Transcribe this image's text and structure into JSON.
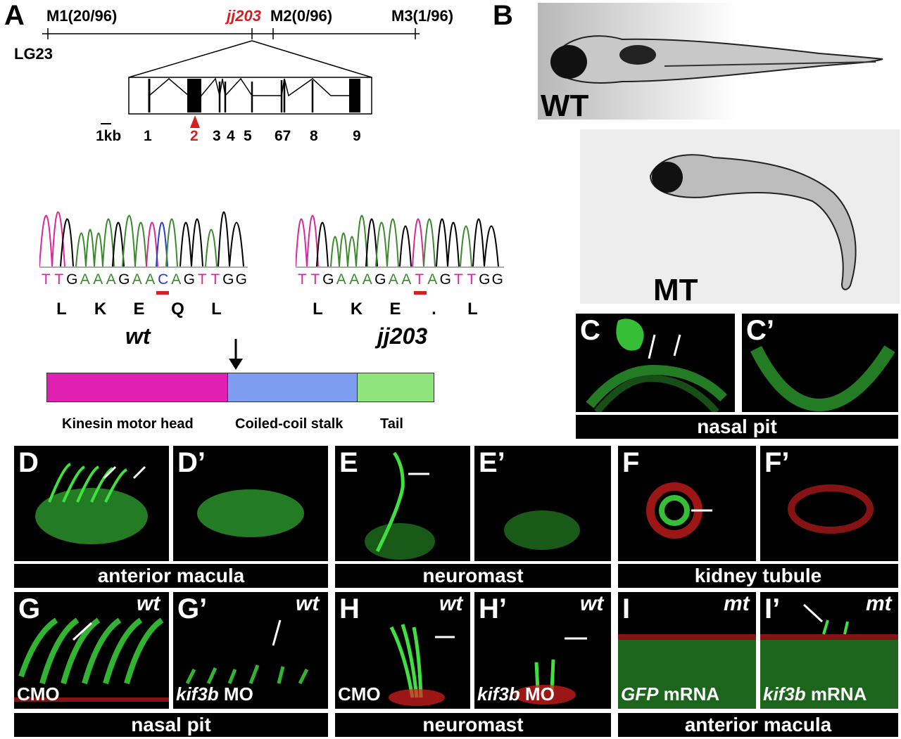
{
  "panel_a": {
    "label": "A",
    "markers": [
      {
        "name": "M1(20/96)",
        "color": "#000000"
      },
      {
        "name": "jj203",
        "color": "#d42020"
      },
      {
        "name": "M2(0/96)",
        "color": "#000000"
      },
      {
        "name": "M3(1/96)",
        "color": "#000000"
      }
    ],
    "linkage_group": "LG23",
    "scale": "1kb",
    "exons": [
      "1",
      "2",
      "3",
      "4",
      "5",
      "67",
      "8",
      "9"
    ],
    "mutated_exon": "2",
    "wt_sequence": [
      "T",
      "T",
      "G",
      "A",
      "A",
      "A",
      "G",
      "A",
      "A",
      "C",
      "A",
      "G",
      "T",
      "T",
      "G",
      "G"
    ],
    "mt_sequence": [
      "T",
      "T",
      "G",
      "A",
      "A",
      "A",
      "G",
      "A",
      "A",
      "T",
      "A",
      "G",
      "T",
      "T",
      "G",
      "G"
    ],
    "wt_protein": [
      "L",
      "K",
      "E",
      "Q",
      "L"
    ],
    "mt_protein": [
      "L",
      "K",
      "E",
      ".",
      "L"
    ],
    "wt_label": "wt",
    "mt_label": "jj203",
    "domains": [
      {
        "name": "Kinesin motor head",
        "color": "#e020b0"
      },
      {
        "name": "Coiled-coil stalk",
        "color": "#7e9cf0"
      },
      {
        "name": "Tail",
        "color": "#8ee57e"
      }
    ]
  },
  "panel_b": {
    "label": "B",
    "wt": "WT",
    "mt": "MT"
  },
  "panels": {
    "C": "C",
    "C2": "C’",
    "D": "D",
    "D2": "D’",
    "E": "E",
    "E2": "E’",
    "F": "F",
    "F2": "F’",
    "G": "G",
    "G2": "G’",
    "H": "H",
    "H2": "H’",
    "I": "I",
    "I2": "I’"
  },
  "bars": {
    "c": "nasal pit",
    "d": "anterior macula",
    "e": "neuromast",
    "f": "kidney tubule",
    "g": "nasal pit",
    "h": "neuromast",
    "i": "anterior macula"
  },
  "genotypes": {
    "g": "wt",
    "g2": "wt",
    "h": "wt",
    "h2": "wt",
    "i": "mt",
    "i2": "mt"
  },
  "treatments": {
    "g": "CMO",
    "g2_gene": "kif3b",
    "g2_rest": " MO",
    "h": "CMO",
    "h2_gene": "kif3b",
    "h2_rest": " MO",
    "i_gene": "GFP",
    "i_rest": " mRNA",
    "i2_gene": "kif3b",
    "i2_rest": " mRNA"
  },
  "colors": {
    "fluor_green": "#3fe03f",
    "fluor_red": "#e02020",
    "mutation_red": "#d42020"
  }
}
